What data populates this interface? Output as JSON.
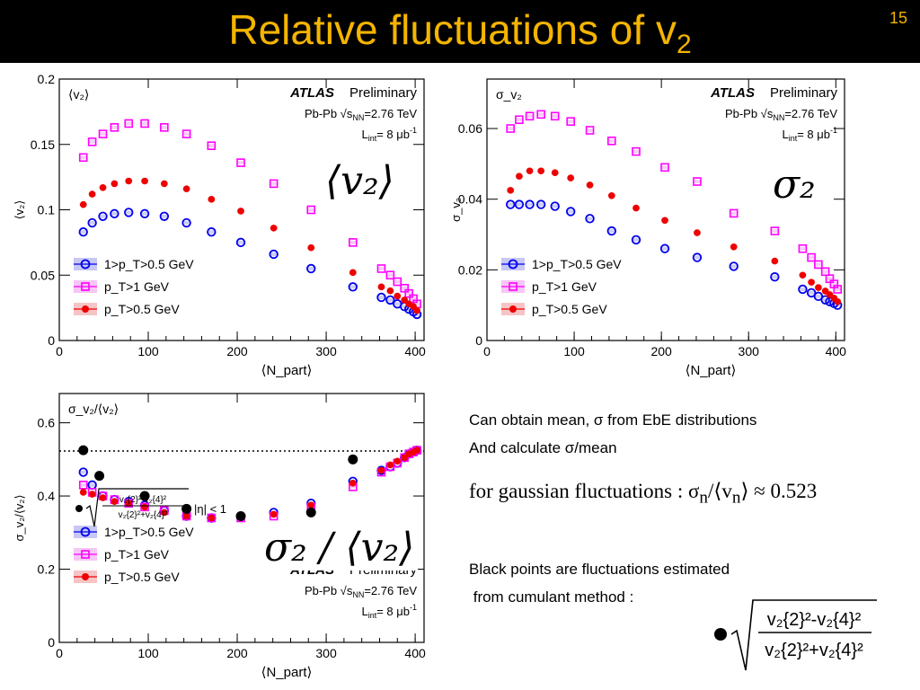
{
  "slide": {
    "title_main": "Relative fluctuations of v",
    "title_sub": "2",
    "number": "15"
  },
  "panel_symbols": {
    "mean": "⟨v₂⟩",
    "sigma": "σ₂",
    "ratio": "σ₂ / ⟨v₂⟩"
  },
  "notes": {
    "line1": "Can obtain mean, σ from EbE distributions",
    "line2": "And calculate σ/mean",
    "gaussian": "for gaussian fluctuations : σ",
    "gaussian_rest": "/⟨v",
    "gaussian_tail": "⟩ ≈ 0.523",
    "gauss_index": "n",
    "black1": "Black points are fluctuations estimated",
    "black2": " from cumulant method :",
    "formula_num": "v₂{2}²-v₂{4}²",
    "formula_den": "v₂{2}²+v₂{4}²"
  },
  "colors": {
    "title": "#f4b400",
    "blue": "#0000ee",
    "magenta": "#ff00ff",
    "red": "#ee0000",
    "blue_band": "#c8c8f4",
    "magenta_band": "#f6c6f6",
    "red_band": "#f6c4c4"
  },
  "atlas": {
    "label": "ATLAS",
    "prelim": "Preliminary",
    "system": "Pb-Pb √s",
    "energy": "=2.76 TeV",
    "lumi": "L",
    "lumi_val": "= 8 μb",
    "nn": "NN",
    "int": "int",
    "inv": "-1"
  },
  "legend": {
    "blue": "1>p_T>0.5 GeV",
    "magenta": "p_T>1 GeV",
    "red": "p_T>0.5 GeV",
    "cumulant_cut": "|η| < 1"
  },
  "chart_data": [
    {
      "type": "scatter",
      "ylabel": "⟨v₂⟩",
      "ylabel_inside": "⟨v₂⟩",
      "xlabel": "⟨N_part⟩",
      "xlim": [
        0,
        410
      ],
      "ylim": [
        0,
        0.2
      ],
      "x_ticks": [
        0,
        100,
        200,
        300,
        400
      ],
      "y_ticks": [
        0,
        0.05,
        0.1,
        0.15,
        0.2
      ],
      "x_tick_labels": [
        "0",
        "100",
        "200",
        "300",
        "400"
      ],
      "y_tick_labels": [
        "0",
        "0.05",
        "0.1",
        "0.15",
        "0.2"
      ],
      "grid": false,
      "legend": "bottom-left",
      "series": [
        {
          "name": "1>p_T>0.5 GeV",
          "marker": "open-circle",
          "color": "blue",
          "x": [
            27,
            37,
            49,
            62,
            78,
            96,
            118,
            143,
            171,
            204,
            241,
            283,
            330,
            362,
            372,
            380,
            388,
            393,
            398,
            402
          ],
          "y": [
            0.083,
            0.09,
            0.095,
            0.097,
            0.098,
            0.097,
            0.095,
            0.09,
            0.083,
            0.075,
            0.066,
            0.055,
            0.041,
            0.033,
            0.031,
            0.028,
            0.026,
            0.024,
            0.022,
            0.02
          ]
        },
        {
          "name": "p_T>1 GeV",
          "marker": "open-square",
          "color": "magenta",
          "x": [
            27,
            37,
            49,
            62,
            78,
            96,
            118,
            143,
            171,
            204,
            241,
            283,
            330,
            362,
            372,
            380,
            388,
            393,
            398,
            402
          ],
          "y": [
            0.14,
            0.152,
            0.158,
            0.163,
            0.166,
            0.166,
            0.163,
            0.158,
            0.149,
            0.136,
            0.12,
            0.1,
            0.075,
            0.055,
            0.05,
            0.045,
            0.04,
            0.036,
            0.032,
            0.028
          ]
        },
        {
          "name": "p_T>0.5 GeV",
          "marker": "filled-circle",
          "color": "red",
          "x": [
            27,
            37,
            49,
            62,
            78,
            96,
            118,
            143,
            171,
            204,
            241,
            283,
            330,
            362,
            372,
            380,
            388,
            393,
            398,
            402
          ],
          "y": [
            0.104,
            0.112,
            0.117,
            0.12,
            0.122,
            0.122,
            0.12,
            0.116,
            0.108,
            0.099,
            0.086,
            0.071,
            0.052,
            0.041,
            0.038,
            0.034,
            0.031,
            0.028,
            0.026,
            0.023
          ]
        }
      ]
    },
    {
      "type": "scatter",
      "ylabel": "σ_v₂",
      "ylabel_inside": "σ_v₂",
      "xlabel": "⟨N_part⟩",
      "xlim": [
        0,
        410
      ],
      "ylim": [
        0,
        0.074
      ],
      "x_ticks": [
        0,
        100,
        200,
        300,
        400
      ],
      "y_ticks": [
        0,
        0.02,
        0.04,
        0.06
      ],
      "x_tick_labels": [
        "0",
        "100",
        "200",
        "300",
        "400"
      ],
      "y_tick_labels": [
        "0",
        "0.02",
        "0.04",
        "0.06"
      ],
      "grid": false,
      "legend": "bottom-left",
      "series": [
        {
          "name": "1>p_T>0.5 GeV",
          "marker": "open-circle",
          "color": "blue",
          "x": [
            27,
            37,
            49,
            62,
            78,
            96,
            118,
            143,
            171,
            204,
            241,
            283,
            330,
            362,
            372,
            380,
            388,
            393,
            398,
            402
          ],
          "y": [
            0.0385,
            0.0385,
            0.0385,
            0.0385,
            0.038,
            0.0365,
            0.0345,
            0.031,
            0.0285,
            0.026,
            0.0235,
            0.021,
            0.018,
            0.0145,
            0.0135,
            0.0125,
            0.0115,
            0.011,
            0.0105,
            0.01
          ]
        },
        {
          "name": "p_T>1 GeV",
          "marker": "open-square",
          "color": "magenta",
          "x": [
            27,
            37,
            49,
            62,
            78,
            96,
            118,
            143,
            171,
            204,
            241,
            283,
            330,
            362,
            372,
            380,
            388,
            393,
            398,
            402
          ],
          "y": [
            0.06,
            0.0625,
            0.0635,
            0.064,
            0.0635,
            0.062,
            0.0595,
            0.0565,
            0.0535,
            0.049,
            0.045,
            0.036,
            0.031,
            0.026,
            0.0235,
            0.0215,
            0.0195,
            0.0175,
            0.016,
            0.0145
          ]
        },
        {
          "name": "p_T>0.5 GeV",
          "marker": "filled-circle",
          "color": "red",
          "x": [
            27,
            37,
            49,
            62,
            78,
            96,
            118,
            143,
            171,
            204,
            241,
            283,
            330,
            362,
            372,
            380,
            388,
            393,
            398,
            402
          ],
          "y": [
            0.0425,
            0.0465,
            0.048,
            0.048,
            0.0475,
            0.046,
            0.044,
            0.041,
            0.0375,
            0.034,
            0.0305,
            0.0265,
            0.0225,
            0.0185,
            0.0165,
            0.015,
            0.014,
            0.013,
            0.012,
            0.011
          ]
        }
      ]
    },
    {
      "type": "scatter",
      "ylabel": "σ_v₂/⟨v₂⟩",
      "ylabel_inside": "σ_v₂/⟨v₂⟩",
      "xlabel": "⟨N_part⟩",
      "xlim": [
        0,
        410
      ],
      "ylim": [
        0,
        0.68
      ],
      "x_ticks": [
        0,
        100,
        200,
        300,
        400
      ],
      "y_ticks": [
        0,
        0.2,
        0.4,
        0.6
      ],
      "x_tick_labels": [
        "0",
        "100",
        "200",
        "300",
        "400"
      ],
      "y_tick_labels": [
        "0",
        "0.2",
        "0.4",
        "0.6"
      ],
      "grid": false,
      "legend": "bottom-left",
      "reference_line": 0.523,
      "series": [
        {
          "name": "1>p_T>0.5 GeV",
          "marker": "open-circle",
          "color": "blue",
          "x": [
            27,
            37,
            49,
            62,
            78,
            96,
            118,
            143,
            171,
            204,
            241,
            283,
            330,
            362,
            372,
            380,
            388,
            393,
            398,
            402
          ],
          "y": [
            0.465,
            0.43,
            0.4,
            0.39,
            0.385,
            0.375,
            0.36,
            0.345,
            0.34,
            0.345,
            0.355,
            0.38,
            0.44,
            0.47,
            0.48,
            0.49,
            0.505,
            0.515,
            0.52,
            0.525
          ]
        },
        {
          "name": "p_T>1 GeV",
          "marker": "open-square",
          "color": "magenta",
          "x": [
            27,
            37,
            49,
            62,
            78,
            96,
            118,
            143,
            171,
            204,
            241,
            283,
            330,
            362,
            372,
            380,
            388,
            393,
            398,
            402
          ],
          "y": [
            0.43,
            0.41,
            0.4,
            0.39,
            0.38,
            0.37,
            0.36,
            0.345,
            0.34,
            0.34,
            0.345,
            0.37,
            0.425,
            0.465,
            0.48,
            0.49,
            0.505,
            0.515,
            0.52,
            0.525
          ]
        },
        {
          "name": "p_T>0.5 GeV",
          "marker": "filled-circle",
          "color": "red",
          "x": [
            27,
            37,
            49,
            62,
            78,
            96,
            118,
            143,
            171,
            204,
            241,
            283,
            330,
            362,
            372,
            380,
            388,
            393,
            398,
            402
          ],
          "y": [
            0.41,
            0.405,
            0.395,
            0.385,
            0.38,
            0.37,
            0.355,
            0.345,
            0.34,
            0.34,
            0.35,
            0.375,
            0.435,
            0.47,
            0.485,
            0.495,
            0.505,
            0.515,
            0.52,
            0.525
          ]
        },
        {
          "name": "cumulant",
          "marker": "filled-circle",
          "color": "black",
          "x": [
            27,
            45,
            96,
            143,
            204,
            283,
            330
          ],
          "y": [
            0.525,
            0.455,
            0.4,
            0.365,
            0.345,
            0.355,
            0.5
          ]
        }
      ]
    }
  ]
}
